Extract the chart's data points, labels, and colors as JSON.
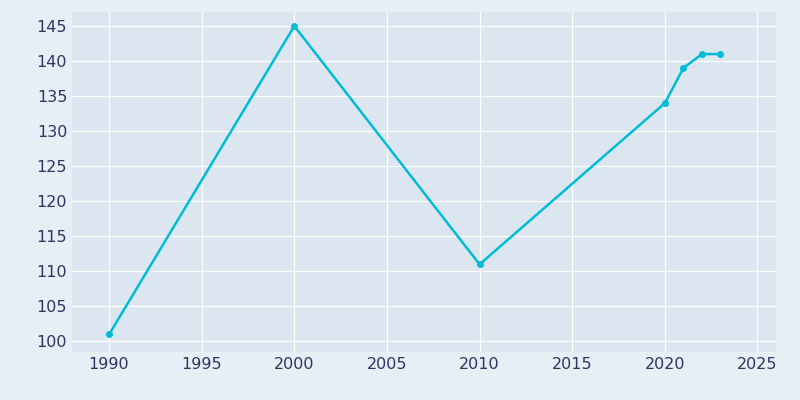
{
  "years": [
    1990,
    2000,
    2010,
    2020,
    2021,
    2022,
    2023
  ],
  "population": [
    101,
    145,
    111,
    134,
    139,
    141,
    141
  ],
  "line_color": "#00BCD4",
  "marker": "o",
  "marker_size": 4,
  "bg_color": "#e8eef5",
  "plot_bg_color": "#dce6f0",
  "grid_color": "#ffffff",
  "xlim": [
    1988,
    2026
  ],
  "ylim": [
    98.5,
    147
  ],
  "xticks": [
    1990,
    1995,
    2000,
    2005,
    2010,
    2015,
    2020,
    2025
  ],
  "yticks": [
    100,
    105,
    110,
    115,
    120,
    125,
    130,
    135,
    140,
    145
  ],
  "tick_color": "#2d3561",
  "tick_fontsize": 11.5,
  "line_width": 1.8
}
